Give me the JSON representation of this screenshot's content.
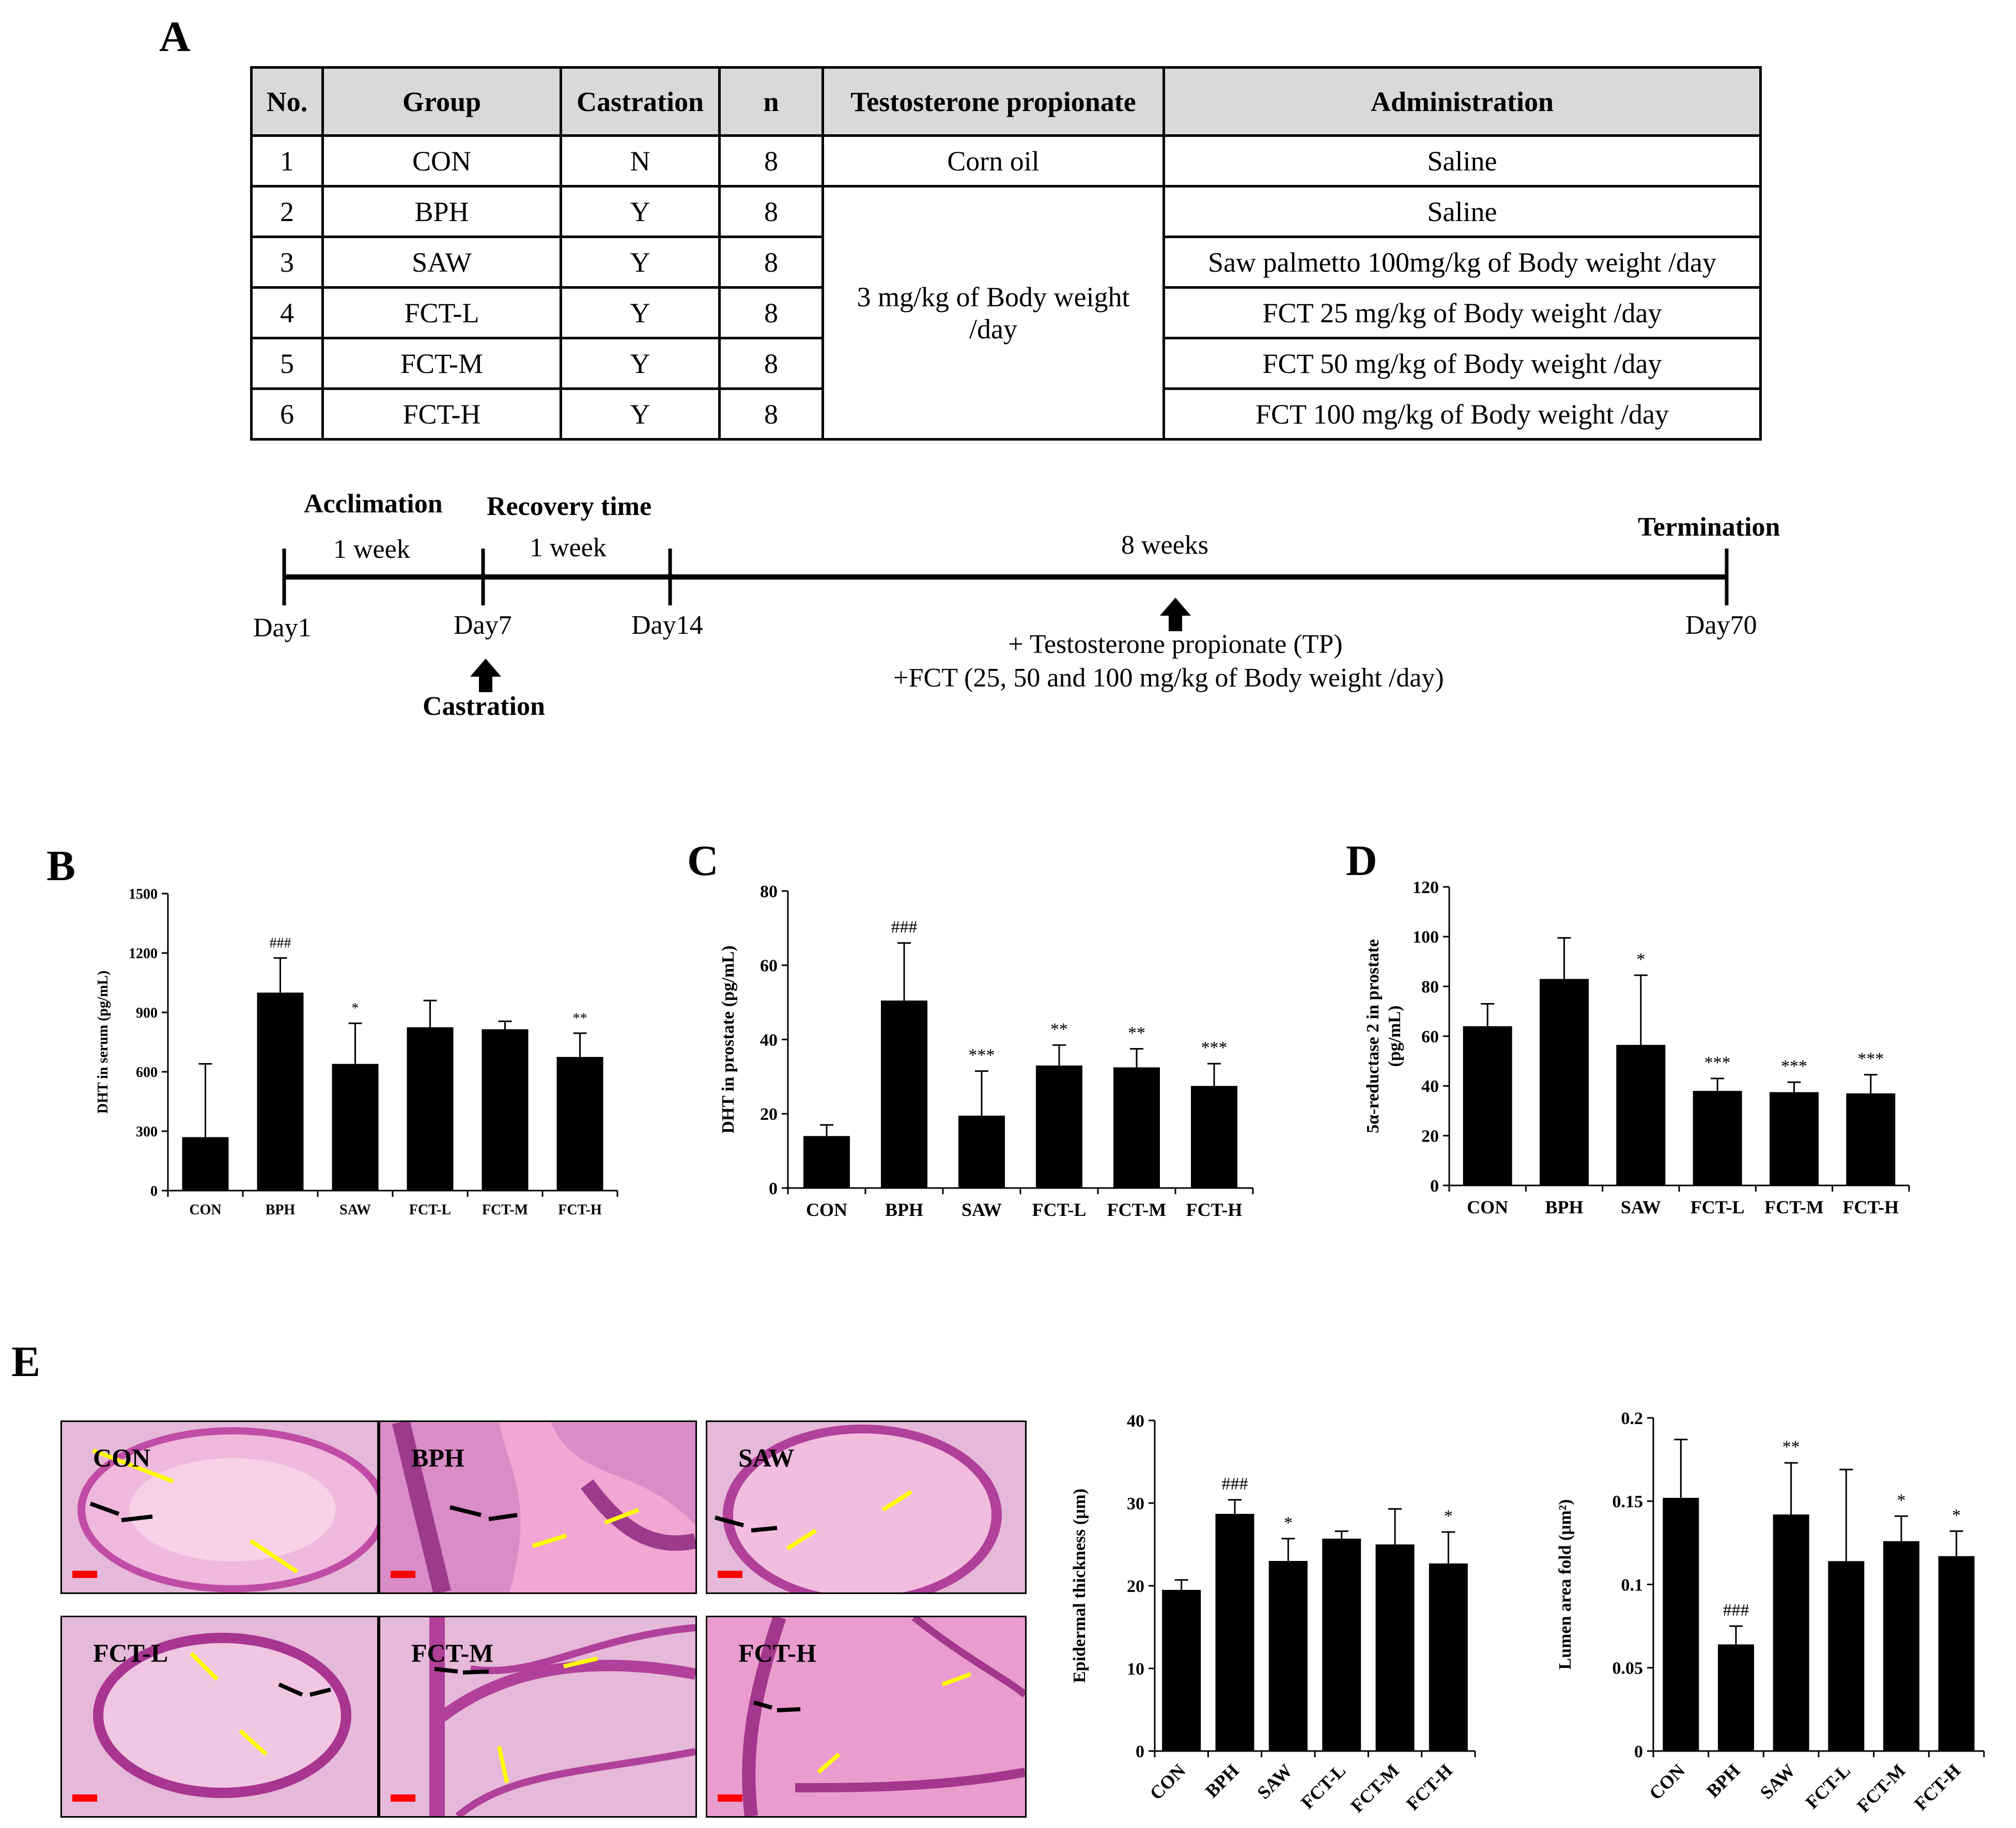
{
  "panels": {
    "a": "A",
    "b": "B",
    "c": "C",
    "d": "D",
    "e": "E"
  },
  "table": {
    "headers": [
      "No.",
      "Group",
      "Castration",
      "n",
      "Testosterone propionate",
      "Administration"
    ],
    "rows": [
      {
        "no": "1",
        "group": "CON",
        "castration": "N",
        "n": "8",
        "tp": "Corn oil",
        "admin": "Saline"
      },
      {
        "no": "2",
        "group": "BPH",
        "castration": "Y",
        "n": "8",
        "admin": "Saline"
      },
      {
        "no": "3",
        "group": "SAW",
        "castration": "Y",
        "n": "8",
        "admin": "Saw palmetto 100mg/kg of Body weight /day"
      },
      {
        "no": "4",
        "group": "FCT-L",
        "castration": "Y",
        "n": "8",
        "admin": "FCT 25 mg/kg of Body weight /day"
      },
      {
        "no": "5",
        "group": "FCT-M",
        "castration": "Y",
        "n": "8",
        "admin": "FCT 50 mg/kg of Body weight /day"
      },
      {
        "no": "6",
        "group": "FCT-H",
        "castration": "Y",
        "n": "8",
        "admin": "FCT 100 mg/kg of Body weight /day"
      }
    ],
    "tp_merged": "3 mg/kg of Body weight /day"
  },
  "timeline": {
    "acclimation": "Acclimation",
    "acclimation_duration": "1 week",
    "recovery": "Recovery time",
    "recovery_duration": "1 week",
    "treatment_duration": "8 weeks",
    "termination": "Termination",
    "day1": "Day1",
    "day7": "Day7",
    "day14": "Day14",
    "day70": "Day70",
    "castration": "Castration",
    "treatment_line1": "+ Testosterone propionate (TP)",
    "treatment_line2": "+FCT (25, 50 and 100 mg/kg of Body weight /day)"
  },
  "histology": {
    "labels": [
      "CON",
      "BPH",
      "SAW",
      "FCT-L",
      "FCT-M",
      "FCT-H"
    ]
  },
  "chart_data": [
    {
      "id": "B",
      "type": "bar",
      "categories": [
        "CON",
        "BPH",
        "SAW",
        "FCT-L",
        "FCT-M",
        "FCT-H"
      ],
      "values": [
        270,
        1000,
        640,
        825,
        815,
        675
      ],
      "errors": [
        370,
        175,
        205,
        135,
        40,
        120
      ],
      "annotations": [
        "",
        "###",
        "*",
        "",
        "",
        "**"
      ],
      "ylabel": "DHT in serum (pg/mL)",
      "ylim": [
        0,
        1500
      ],
      "yticks": [
        "0",
        "300",
        "600",
        "900",
        "1200",
        "1500"
      ]
    },
    {
      "id": "C",
      "type": "bar",
      "categories": [
        "CON",
        "BPH",
        "SAW",
        "FCT-L",
        "FCT-M",
        "FCT-H"
      ],
      "values": [
        14,
        50.5,
        19.5,
        33,
        32.5,
        27.5
      ],
      "errors": [
        3,
        15.5,
        12,
        5.5,
        5,
        6
      ],
      "annotations": [
        "",
        "###",
        "***",
        "**",
        "**",
        "***"
      ],
      "ylabel": "DHT in prostate (pg/mL)",
      "ylim": [
        0,
        80
      ],
      "yticks": [
        "0",
        "20",
        "40",
        "60",
        "80"
      ]
    },
    {
      "id": "D",
      "type": "bar",
      "categories": [
        "CON",
        "BPH",
        "SAW",
        "FCT-L",
        "FCT-M",
        "FCT-H"
      ],
      "values": [
        64,
        83,
        56.5,
        38,
        37.5,
        37
      ],
      "errors": [
        9,
        16.5,
        28,
        5,
        4,
        7.5
      ],
      "annotations": [
        "",
        "",
        "*",
        "***",
        "***",
        "***"
      ],
      "ylabel": "5α-reductase 2 in prostate",
      "ylabel2": "(pg/mL)",
      "ylim": [
        0,
        120
      ],
      "yticks": [
        "0",
        "20",
        "40",
        "60",
        "80",
        "100",
        "120"
      ]
    },
    {
      "id": "E1",
      "type": "bar",
      "categories": [
        "CON",
        "BPH",
        "SAW",
        "FCT-L",
        "FCT-M",
        "FCT-H"
      ],
      "values": [
        19.5,
        28.7,
        23,
        25.7,
        25,
        22.7
      ],
      "errors": [
        1.2,
        1.7,
        2.7,
        0.9,
        4.3,
        3.8
      ],
      "annotations": [
        "",
        "###",
        "*",
        "",
        "",
        "*"
      ],
      "ylabel": "Epidermal thickness (μm)",
      "ylim": [
        0,
        40
      ],
      "yticks": [
        "0",
        "10",
        "20",
        "30",
        "40"
      ]
    },
    {
      "id": "E2",
      "type": "bar",
      "categories": [
        "CON",
        "BPH",
        "SAW",
        "FCT-L",
        "FCT-M",
        "FCT-H"
      ],
      "values": [
        0.152,
        0.064,
        0.142,
        0.114,
        0.126,
        0.117
      ],
      "errors": [
        0.035,
        0.011,
        0.031,
        0.055,
        0.015,
        0.015
      ],
      "annotations": [
        "",
        "###",
        "**",
        "",
        "*",
        "*"
      ],
      "ylabel": "Lumen area fold (μm²)",
      "ylim": [
        0,
        0.2
      ],
      "yticks": [
        "0",
        "0.05",
        "0.1",
        "0.15",
        "0.2"
      ]
    }
  ]
}
